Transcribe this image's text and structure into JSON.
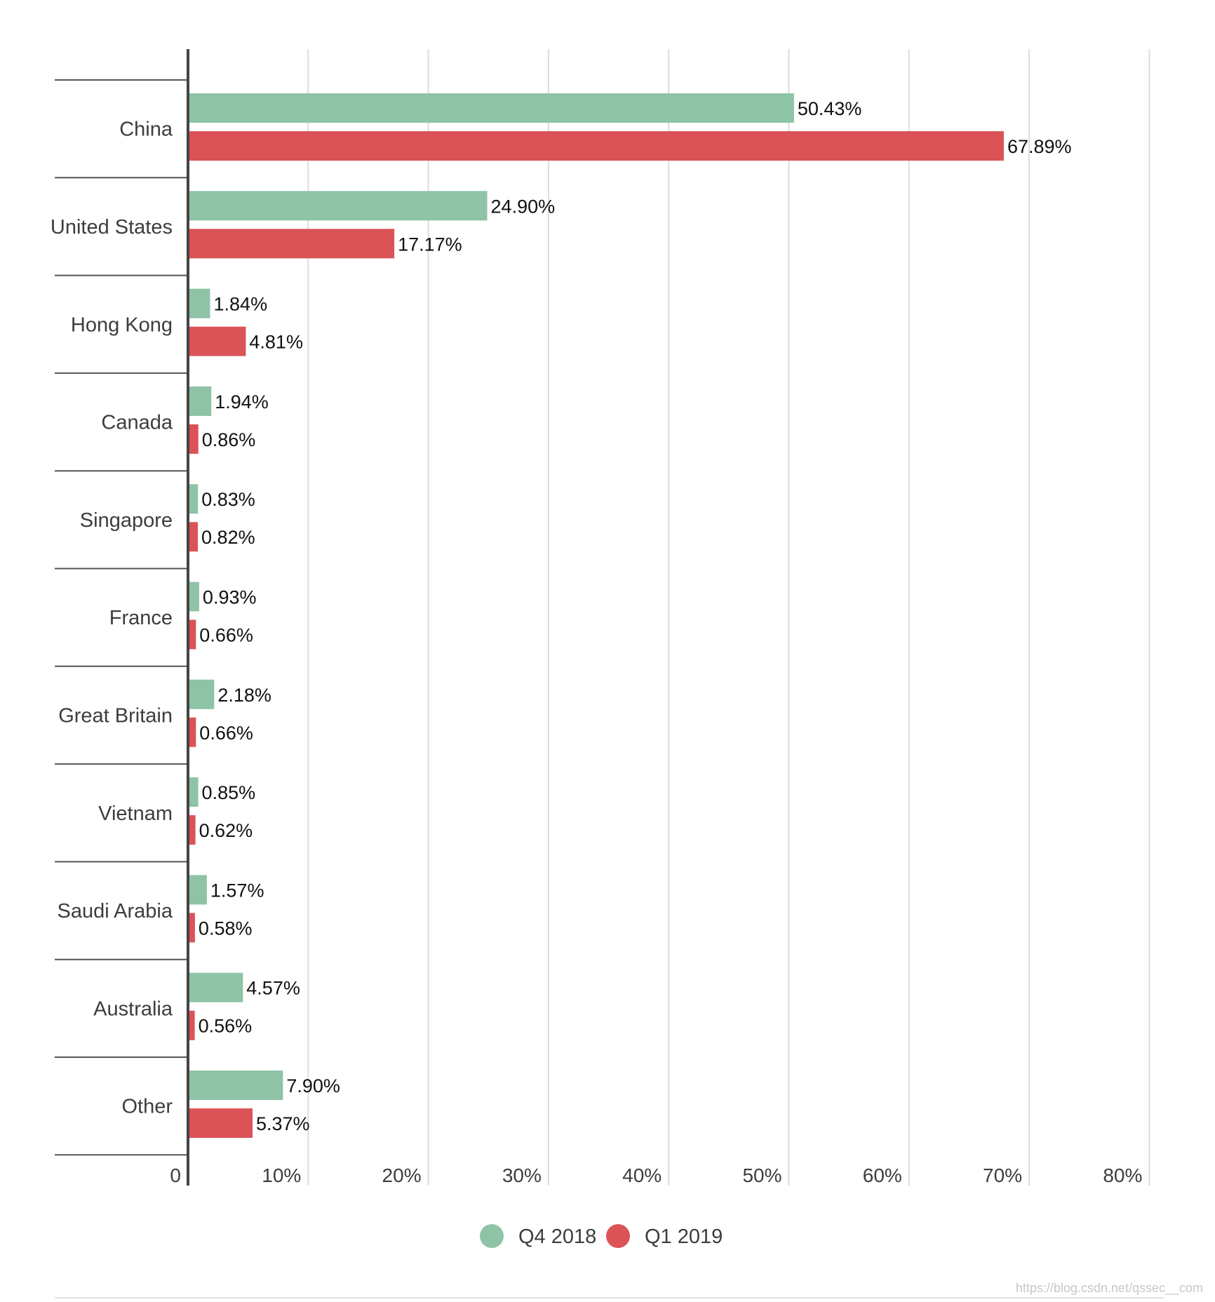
{
  "chart_data": {
    "type": "bar",
    "orientation": "horizontal",
    "categories": [
      "China",
      "United States",
      "Hong Kong",
      "Canada",
      "Singapore",
      "France",
      "Great Britain",
      "Vietnam",
      "Saudi Arabia",
      "Australia",
      "Other"
    ],
    "series": [
      {
        "name": "Q4 2018",
        "color": "#8fc3a6",
        "values": [
          50.43,
          24.9,
          1.84,
          1.94,
          0.83,
          0.93,
          2.18,
          0.85,
          1.57,
          4.57,
          7.9
        ],
        "labels": [
          "50.43%",
          "24.90%",
          "1.84%",
          "1.94%",
          "0.83%",
          "0.93%",
          "2.18%",
          "0.85%",
          "1.57%",
          "4.57%",
          "7.90%"
        ]
      },
      {
        "name": "Q1 2019",
        "color": "#db5357",
        "values": [
          67.89,
          17.17,
          4.81,
          0.86,
          0.82,
          0.66,
          0.66,
          0.62,
          0.58,
          0.56,
          5.37
        ],
        "labels": [
          "67.89%",
          "17.17%",
          "4.81%",
          "0.86%",
          "0.82%",
          "0.66%",
          "0.66%",
          "0.62%",
          "0.58%",
          "0.56%",
          "5.37%"
        ]
      }
    ],
    "xlim": [
      0,
      80
    ],
    "x_ticks": [
      0,
      10,
      20,
      30,
      40,
      50,
      60,
      70,
      80
    ],
    "x_tick_labels": [
      "0",
      "10%",
      "20%",
      "30%",
      "40%",
      "50%",
      "60%",
      "70%",
      "80%"
    ],
    "grid": true,
    "legend": "bottom-center",
    "title": "",
    "xlabel": "",
    "ylabel": ""
  },
  "watermark": "https://blog.csdn.net/qssec__com"
}
